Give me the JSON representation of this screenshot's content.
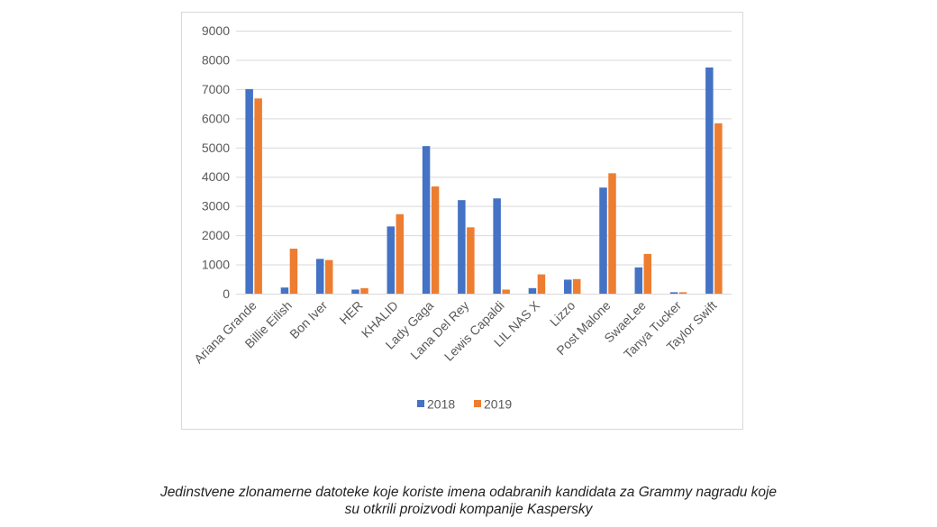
{
  "chart_data": {
    "type": "bar",
    "title": "",
    "xlabel": "",
    "ylabel": "",
    "ylim": [
      0,
      9000
    ],
    "yticks": [
      0,
      1000,
      2000,
      3000,
      4000,
      5000,
      6000,
      7000,
      8000,
      9000
    ],
    "grid": true,
    "legend_position": "bottom",
    "categories": [
      "Ariana Grande",
      "Billie Eilish",
      "Bon Iver",
      "HER",
      "KHALID",
      "Lady Gaga",
      "Lana Del Rey",
      "Lewis Capaldi",
      "LIL NAS X",
      "Lizzo",
      "Post Malone",
      "SwaeLee",
      "Tanya Tucker",
      "Taylor Swift"
    ],
    "series": [
      {
        "name": "2018",
        "color": "#4472c4",
        "values": [
          7000,
          210,
          1190,
          140,
          2300,
          5050,
          3200,
          3260,
          190,
          480,
          3630,
          900,
          50,
          7740
        ]
      },
      {
        "name": "2019",
        "color": "#ed7d31",
        "values": [
          6680,
          1540,
          1150,
          190,
          2720,
          3670,
          2270,
          140,
          660,
          500,
          4120,
          1360,
          50,
          5830
        ]
      }
    ]
  },
  "caption": {
    "line1": "Jedinstvene zlonamerne datoteke koje koriste imena odabranih kandidata za Grammy nagradu koje",
    "line2": "su otkrili proizvodi kompanije Kaspersky"
  }
}
